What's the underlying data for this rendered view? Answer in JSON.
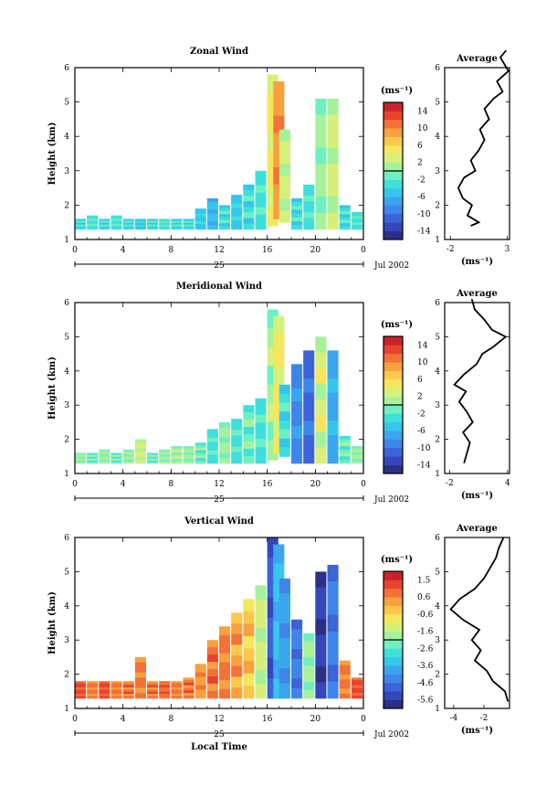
{
  "chart_data": [
    {
      "type": "heatmap",
      "title": "Zonal Wind",
      "ylabel": "Height (km)",
      "xlabel": "",
      "xticks": [
        "0",
        "4",
        "8",
        "12",
        "16",
        "20",
        "0"
      ],
      "ylim": [
        1,
        6
      ],
      "yticks": [
        "1",
        "2",
        "3",
        "4",
        "5",
        "6"
      ],
      "date_axis": {
        "day": "25",
        "month_label": "Jul 2002"
      },
      "colorbar": {
        "unit": "(ms⁻¹)",
        "ticks": [
          "14",
          "10",
          "6",
          "2",
          "-2",
          "-6",
          "-10",
          "-14"
        ],
        "range": [
          -15,
          15
        ]
      },
      "columns": [
        {
          "t": 0.0,
          "h0": 1.3,
          "h1": 1.6,
          "v": -3
        },
        {
          "t": 1.0,
          "h0": 1.3,
          "h1": 1.7,
          "v": -2
        },
        {
          "t": 2.0,
          "h0": 1.3,
          "h1": 1.6,
          "v": -3
        },
        {
          "t": 3.0,
          "h0": 1.3,
          "h1": 1.7,
          "v": -2
        },
        {
          "t": 4.0,
          "h0": 1.3,
          "h1": 1.6,
          "v": -3
        },
        {
          "t": 5.0,
          "h0": 1.3,
          "h1": 1.6,
          "v": -4
        },
        {
          "t": 6.0,
          "h0": 1.3,
          "h1": 1.6,
          "v": -3
        },
        {
          "t": 7.0,
          "h0": 1.3,
          "h1": 1.6,
          "v": -2
        },
        {
          "t": 8.0,
          "h0": 1.3,
          "h1": 1.6,
          "v": -3
        },
        {
          "t": 9.0,
          "h0": 1.3,
          "h1": 1.6,
          "v": -3
        },
        {
          "t": 10.0,
          "h0": 1.3,
          "h1": 1.9,
          "v": -4
        },
        {
          "t": 11.0,
          "h0": 1.3,
          "h1": 2.2,
          "v": -5
        },
        {
          "t": 12.0,
          "h0": 1.3,
          "h1": 2.0,
          "v": -3
        },
        {
          "t": 13.0,
          "h0": 1.3,
          "h1": 2.3,
          "v": -4
        },
        {
          "t": 14.0,
          "h0": 1.3,
          "h1": 2.6,
          "v": -3
        },
        {
          "t": 15.0,
          "h0": 1.3,
          "h1": 3.0,
          "v": -2
        },
        {
          "t": 16.0,
          "h0": 1.4,
          "h1": 5.8,
          "v": 4
        },
        {
          "t": 16.5,
          "h0": 1.6,
          "h1": 5.6,
          "v": 9
        },
        {
          "t": 17.0,
          "h0": 1.5,
          "h1": 4.2,
          "v": 2
        },
        {
          "t": 18.0,
          "h0": 1.3,
          "h1": 2.2,
          "v": -3
        },
        {
          "t": 19.0,
          "h0": 1.3,
          "h1": 2.6,
          "v": -2
        },
        {
          "t": 20.0,
          "h0": 1.3,
          "h1": 5.1,
          "v": 0
        },
        {
          "t": 21.0,
          "h0": 1.3,
          "h1": 5.1,
          "v": 2
        },
        {
          "t": 22.0,
          "h0": 1.3,
          "h1": 2.0,
          "v": -3
        },
        {
          "t": 23.0,
          "h0": 1.3,
          "h1": 1.8,
          "v": -2
        }
      ],
      "average_profile": {
        "title": "Average",
        "unit": "(ms⁻¹)",
        "xticks": [
          "-2",
          "3"
        ],
        "xlim": [
          -2.5,
          3.2
        ],
        "points": [
          [
            -0.2,
            1.4
          ],
          [
            0.5,
            1.5
          ],
          [
            -0.5,
            1.7
          ],
          [
            -0.1,
            2.0
          ],
          [
            -0.9,
            2.2
          ],
          [
            -1.3,
            2.5
          ],
          [
            -0.8,
            2.8
          ],
          [
            0.2,
            3.0
          ],
          [
            -0.2,
            3.3
          ],
          [
            0.5,
            3.6
          ],
          [
            1.0,
            3.9
          ],
          [
            0.6,
            4.2
          ],
          [
            1.4,
            4.5
          ],
          [
            1.0,
            4.8
          ],
          [
            1.8,
            5.1
          ],
          [
            2.6,
            5.3
          ],
          [
            2.1,
            5.6
          ],
          [
            3.1,
            5.9
          ],
          [
            2.4,
            6.3
          ],
          [
            2.9,
            6.5
          ]
        ]
      }
    },
    {
      "type": "heatmap",
      "title": "Meridional Wind",
      "ylabel": "Height (km)",
      "xlabel": "",
      "xticks": [
        "0",
        "4",
        "8",
        "12",
        "16",
        "20",
        "0"
      ],
      "ylim": [
        1,
        6
      ],
      "yticks": [
        "1",
        "2",
        "3",
        "4",
        "5",
        "6"
      ],
      "date_axis": {
        "day": "25",
        "month_label": "Jul 2002"
      },
      "colorbar": {
        "unit": "(ms⁻¹)",
        "ticks": [
          "14",
          "10",
          "6",
          "2",
          "-2",
          "-6",
          "-10",
          "-14"
        ],
        "range": [
          -15,
          15
        ]
      },
      "columns": [
        {
          "t": 0.0,
          "h0": 1.3,
          "h1": 1.6,
          "v": 0
        },
        {
          "t": 1.0,
          "h0": 1.3,
          "h1": 1.6,
          "v": -1
        },
        {
          "t": 2.0,
          "h0": 1.3,
          "h1": 1.7,
          "v": 0
        },
        {
          "t": 3.0,
          "h0": 1.3,
          "h1": 1.6,
          "v": -1
        },
        {
          "t": 4.0,
          "h0": 1.3,
          "h1": 1.7,
          "v": 0
        },
        {
          "t": 5.0,
          "h0": 1.3,
          "h1": 2.0,
          "v": 2
        },
        {
          "t": 6.0,
          "h0": 1.3,
          "h1": 1.6,
          "v": -1
        },
        {
          "t": 7.0,
          "h0": 1.3,
          "h1": 1.7,
          "v": 0
        },
        {
          "t": 8.0,
          "h0": 1.3,
          "h1": 1.8,
          "v": 1
        },
        {
          "t": 9.0,
          "h0": 1.3,
          "h1": 1.8,
          "v": 0
        },
        {
          "t": 10.0,
          "h0": 1.3,
          "h1": 1.9,
          "v": -1
        },
        {
          "t": 11.0,
          "h0": 1.3,
          "h1": 2.3,
          "v": -2
        },
        {
          "t": 12.0,
          "h0": 1.3,
          "h1": 2.5,
          "v": 0
        },
        {
          "t": 13.0,
          "h0": 1.3,
          "h1": 2.6,
          "v": -2
        },
        {
          "t": 14.0,
          "h0": 1.3,
          "h1": 3.0,
          "v": -1
        },
        {
          "t": 15.0,
          "h0": 1.3,
          "h1": 3.2,
          "v": -2
        },
        {
          "t": 16.0,
          "h0": 1.4,
          "h1": 5.8,
          "v": 1
        },
        {
          "t": 16.5,
          "h0": 1.6,
          "h1": 5.6,
          "v": 4
        },
        {
          "t": 17.0,
          "h0": 1.5,
          "h1": 3.6,
          "v": -3
        },
        {
          "t": 18.0,
          "h0": 1.3,
          "h1": 4.2,
          "v": -8
        },
        {
          "t": 19.0,
          "h0": 1.3,
          "h1": 4.6,
          "v": -10
        },
        {
          "t": 20.0,
          "h0": 1.3,
          "h1": 5.0,
          "v": 3
        },
        {
          "t": 21.0,
          "h0": 1.3,
          "h1": 4.6,
          "v": -6
        },
        {
          "t": 22.0,
          "h0": 1.3,
          "h1": 2.1,
          "v": -1
        },
        {
          "t": 23.0,
          "h0": 1.3,
          "h1": 1.8,
          "v": 0
        }
      ],
      "average_profile": {
        "title": "Average",
        "unit": "(ms⁻¹)",
        "xticks": [
          "-2",
          "4"
        ],
        "xlim": [
          -2.5,
          4.2
        ],
        "points": [
          [
            -0.5,
            1.3
          ],
          [
            -0.2,
            1.6
          ],
          [
            0.1,
            1.9
          ],
          [
            -0.6,
            2.2
          ],
          [
            0.4,
            2.5
          ],
          [
            -0.2,
            2.8
          ],
          [
            -1.0,
            3.1
          ],
          [
            -0.3,
            3.4
          ],
          [
            -1.5,
            3.6
          ],
          [
            -0.5,
            3.9
          ],
          [
            0.8,
            4.2
          ],
          [
            1.4,
            4.5
          ],
          [
            2.5,
            4.7
          ],
          [
            3.8,
            5.0
          ],
          [
            2.4,
            5.2
          ],
          [
            1.6,
            5.5
          ],
          [
            0.6,
            5.8
          ],
          [
            0.3,
            6.1
          ]
        ]
      }
    },
    {
      "type": "heatmap",
      "title": "Vertical Wind",
      "ylabel": "Height (km)",
      "xlabel": "Local Time",
      "xticks": [
        "0",
        "4",
        "8",
        "12",
        "16",
        "20",
        "0"
      ],
      "ylim": [
        1,
        6
      ],
      "yticks": [
        "1",
        "2",
        "3",
        "4",
        "5",
        "6"
      ],
      "date_axis": {
        "day": "25",
        "month_label": "Jul 2002"
      },
      "colorbar": {
        "unit": "(ms⁻¹)",
        "ticks": [
          "1.5",
          "0.6",
          "-0.6",
          "-1.6",
          "-2.6",
          "-3.6",
          "-4.6",
          "-5.6"
        ],
        "range": [
          -6,
          2
        ]
      },
      "columns": [
        {
          "t": 0.0,
          "h0": 1.3,
          "h1": 1.8,
          "v": 1.0
        },
        {
          "t": 1.0,
          "h0": 1.3,
          "h1": 1.8,
          "v": 0.6
        },
        {
          "t": 2.0,
          "h0": 1.3,
          "h1": 1.8,
          "v": 1.0
        },
        {
          "t": 3.0,
          "h0": 1.3,
          "h1": 1.8,
          "v": 0.6
        },
        {
          "t": 4.0,
          "h0": 1.3,
          "h1": 1.8,
          "v": 0.8
        },
        {
          "t": 5.0,
          "h0": 1.3,
          "h1": 2.5,
          "v": 0.5
        },
        {
          "t": 6.0,
          "h0": 1.3,
          "h1": 1.8,
          "v": 0.8
        },
        {
          "t": 7.0,
          "h0": 1.3,
          "h1": 1.8,
          "v": 0.9
        },
        {
          "t": 8.0,
          "h0": 1.3,
          "h1": 1.8,
          "v": 0.6
        },
        {
          "t": 9.0,
          "h0": 1.3,
          "h1": 1.9,
          "v": 0.7
        },
        {
          "t": 10.0,
          "h0": 1.3,
          "h1": 2.3,
          "v": 0.4
        },
        {
          "t": 11.0,
          "h0": 1.3,
          "h1": 3.0,
          "v": 0.8
        },
        {
          "t": 12.0,
          "h0": 1.3,
          "h1": 3.4,
          "v": 0.5
        },
        {
          "t": 13.0,
          "h0": 1.3,
          "h1": 3.8,
          "v": 0.2
        },
        {
          "t": 14.0,
          "h0": 1.3,
          "h1": 4.2,
          "v": -0.2
        },
        {
          "t": 15.0,
          "h0": 1.3,
          "h1": 4.6,
          "v": -1.5
        },
        {
          "t": 16.0,
          "h0": 1.3,
          "h1": 6.0,
          "v": -5.0
        },
        {
          "t": 16.5,
          "h0": 1.3,
          "h1": 5.8,
          "v": -3.5
        },
        {
          "t": 17.0,
          "h0": 1.3,
          "h1": 4.8,
          "v": -4.0
        },
        {
          "t": 18.0,
          "h0": 1.3,
          "h1": 3.6,
          "v": -4.5
        },
        {
          "t": 19.0,
          "h0": 1.3,
          "h1": 3.2,
          "v": -2.0
        },
        {
          "t": 20.0,
          "h0": 1.3,
          "h1": 5.0,
          "v": -5.5
        },
        {
          "t": 21.0,
          "h0": 1.3,
          "h1": 5.2,
          "v": -4.5
        },
        {
          "t": 22.0,
          "h0": 1.3,
          "h1": 2.4,
          "v": 0.6
        },
        {
          "t": 23.0,
          "h0": 1.3,
          "h1": 1.9,
          "v": 1.0
        }
      ],
      "average_profile": {
        "title": "Average",
        "unit": "(ms⁻¹)",
        "xticks": [
          "-4",
          "-2"
        ],
        "xlim": [
          -4.6,
          -0.3
        ],
        "points": [
          [
            -0.4,
            1.2
          ],
          [
            -0.6,
            1.5
          ],
          [
            -1.4,
            1.8
          ],
          [
            -1.8,
            2.1
          ],
          [
            -2.6,
            2.4
          ],
          [
            -2.2,
            2.7
          ],
          [
            -2.8,
            3.0
          ],
          [
            -2.3,
            3.3
          ],
          [
            -3.4,
            3.6
          ],
          [
            -4.2,
            3.9
          ],
          [
            -3.6,
            4.2
          ],
          [
            -2.6,
            4.5
          ],
          [
            -2.0,
            4.8
          ],
          [
            -1.6,
            5.1
          ],
          [
            -1.2,
            5.4
          ],
          [
            -1.0,
            5.7
          ],
          [
            -0.7,
            6.0
          ]
        ]
      }
    }
  ]
}
